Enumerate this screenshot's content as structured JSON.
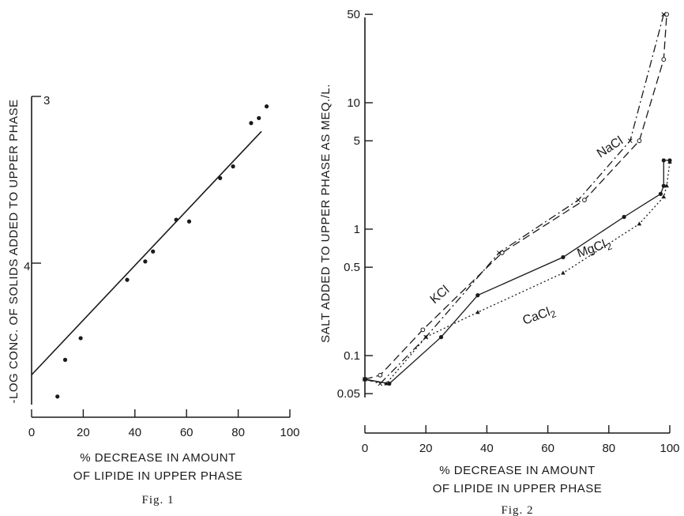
{
  "chart_data": [
    {
      "type": "scatter",
      "caption": "Fig. 1",
      "xlabel_line1": "% DECREASE IN AMOUNT",
      "xlabel_line2": "OF LIPIDE IN UPPER PHASE",
      "ylabel": "-LOG CONC. OF SOLIDS ADDED TO UPPER PHASE",
      "xlim": [
        0,
        100
      ],
      "x_ticks": [
        "0",
        "20",
        "40",
        "60",
        "80",
        "100"
      ],
      "y_reversed": true,
      "ylim": [
        4.85,
        2.95
      ],
      "y_ticks": [
        "3",
        "4"
      ],
      "y_tick_values": [
        3,
        4
      ],
      "points": [
        {
          "x": 10,
          "y": 4.8
        },
        {
          "x": 13,
          "y": 4.58
        },
        {
          "x": 19,
          "y": 4.45
        },
        {
          "x": 37,
          "y": 4.1
        },
        {
          "x": 44,
          "y": 3.99
        },
        {
          "x": 47,
          "y": 3.93
        },
        {
          "x": 56,
          "y": 3.74
        },
        {
          "x": 61,
          "y": 3.75
        },
        {
          "x": 73,
          "y": 3.49
        },
        {
          "x": 78,
          "y": 3.42
        },
        {
          "x": 85,
          "y": 3.16
        },
        {
          "x": 88,
          "y": 3.13
        },
        {
          "x": 91,
          "y": 3.06
        }
      ],
      "fit_line": [
        {
          "x": 0,
          "y": 4.67
        },
        {
          "x": 89,
          "y": 3.21
        }
      ]
    },
    {
      "type": "line",
      "caption": "Fig. 2",
      "xlabel_line1": "% DECREASE IN AMOUNT",
      "xlabel_line2": "OF LIPIDE IN UPPER PHASE",
      "ylabel": "SALT ADDED TO UPPER PHASE AS MEQ./L.",
      "xlim": [
        0,
        100
      ],
      "x_ticks": [
        "0",
        "20",
        "40",
        "60",
        "80",
        "100"
      ],
      "y_scale": "log",
      "ylim": [
        0.05,
        50
      ],
      "y_tick_values": [
        0.05,
        0.1,
        0.5,
        1,
        5,
        10,
        50
      ],
      "y_ticks": [
        "0.05",
        "0.1",
        "0.5",
        "1",
        "5",
        "10",
        "50"
      ],
      "series": [
        {
          "name": "NaCl",
          "style": "dash",
          "marker": "circle",
          "points": [
            [
              0,
              0.065
            ],
            [
              5,
              0.07
            ],
            [
              19,
              0.16
            ],
            [
              45,
              0.65
            ],
            [
              72,
              1.7
            ],
            [
              90,
              5
            ],
            [
              98,
              22
            ],
            [
              99,
              50
            ]
          ]
        },
        {
          "name": "KCl",
          "style": "dashdot",
          "marker": "cross",
          "points": [
            [
              0,
              0.065
            ],
            [
              5,
              0.06
            ],
            [
              20,
              0.14
            ],
            [
              44,
              0.65
            ],
            [
              70,
              1.7
            ],
            [
              87,
              5
            ],
            [
              98,
              50
            ]
          ]
        },
        {
          "name": "MgCl2",
          "style": "solid",
          "marker": "dot",
          "points": [
            [
              0,
              0.065
            ],
            [
              8,
              0.06
            ],
            [
              25,
              0.14
            ],
            [
              37,
              0.3
            ],
            [
              65,
              0.6
            ],
            [
              85,
              1.25
            ],
            [
              97,
              1.9
            ],
            [
              98,
              2.2
            ],
            [
              98,
              3.5
            ],
            [
              100,
              3.5
            ]
          ]
        },
        {
          "name": "CaCl2",
          "style": "dot",
          "marker": "triangle",
          "points": [
            [
              0,
              0.065
            ],
            [
              7,
              0.06
            ],
            [
              20,
              0.14
            ],
            [
              37,
              0.22
            ],
            [
              65,
              0.45
            ],
            [
              90,
              1.1
            ],
            [
              98,
              1.8
            ],
            [
              99,
              2.2
            ],
            [
              100,
              3.4
            ]
          ]
        }
      ]
    }
  ]
}
